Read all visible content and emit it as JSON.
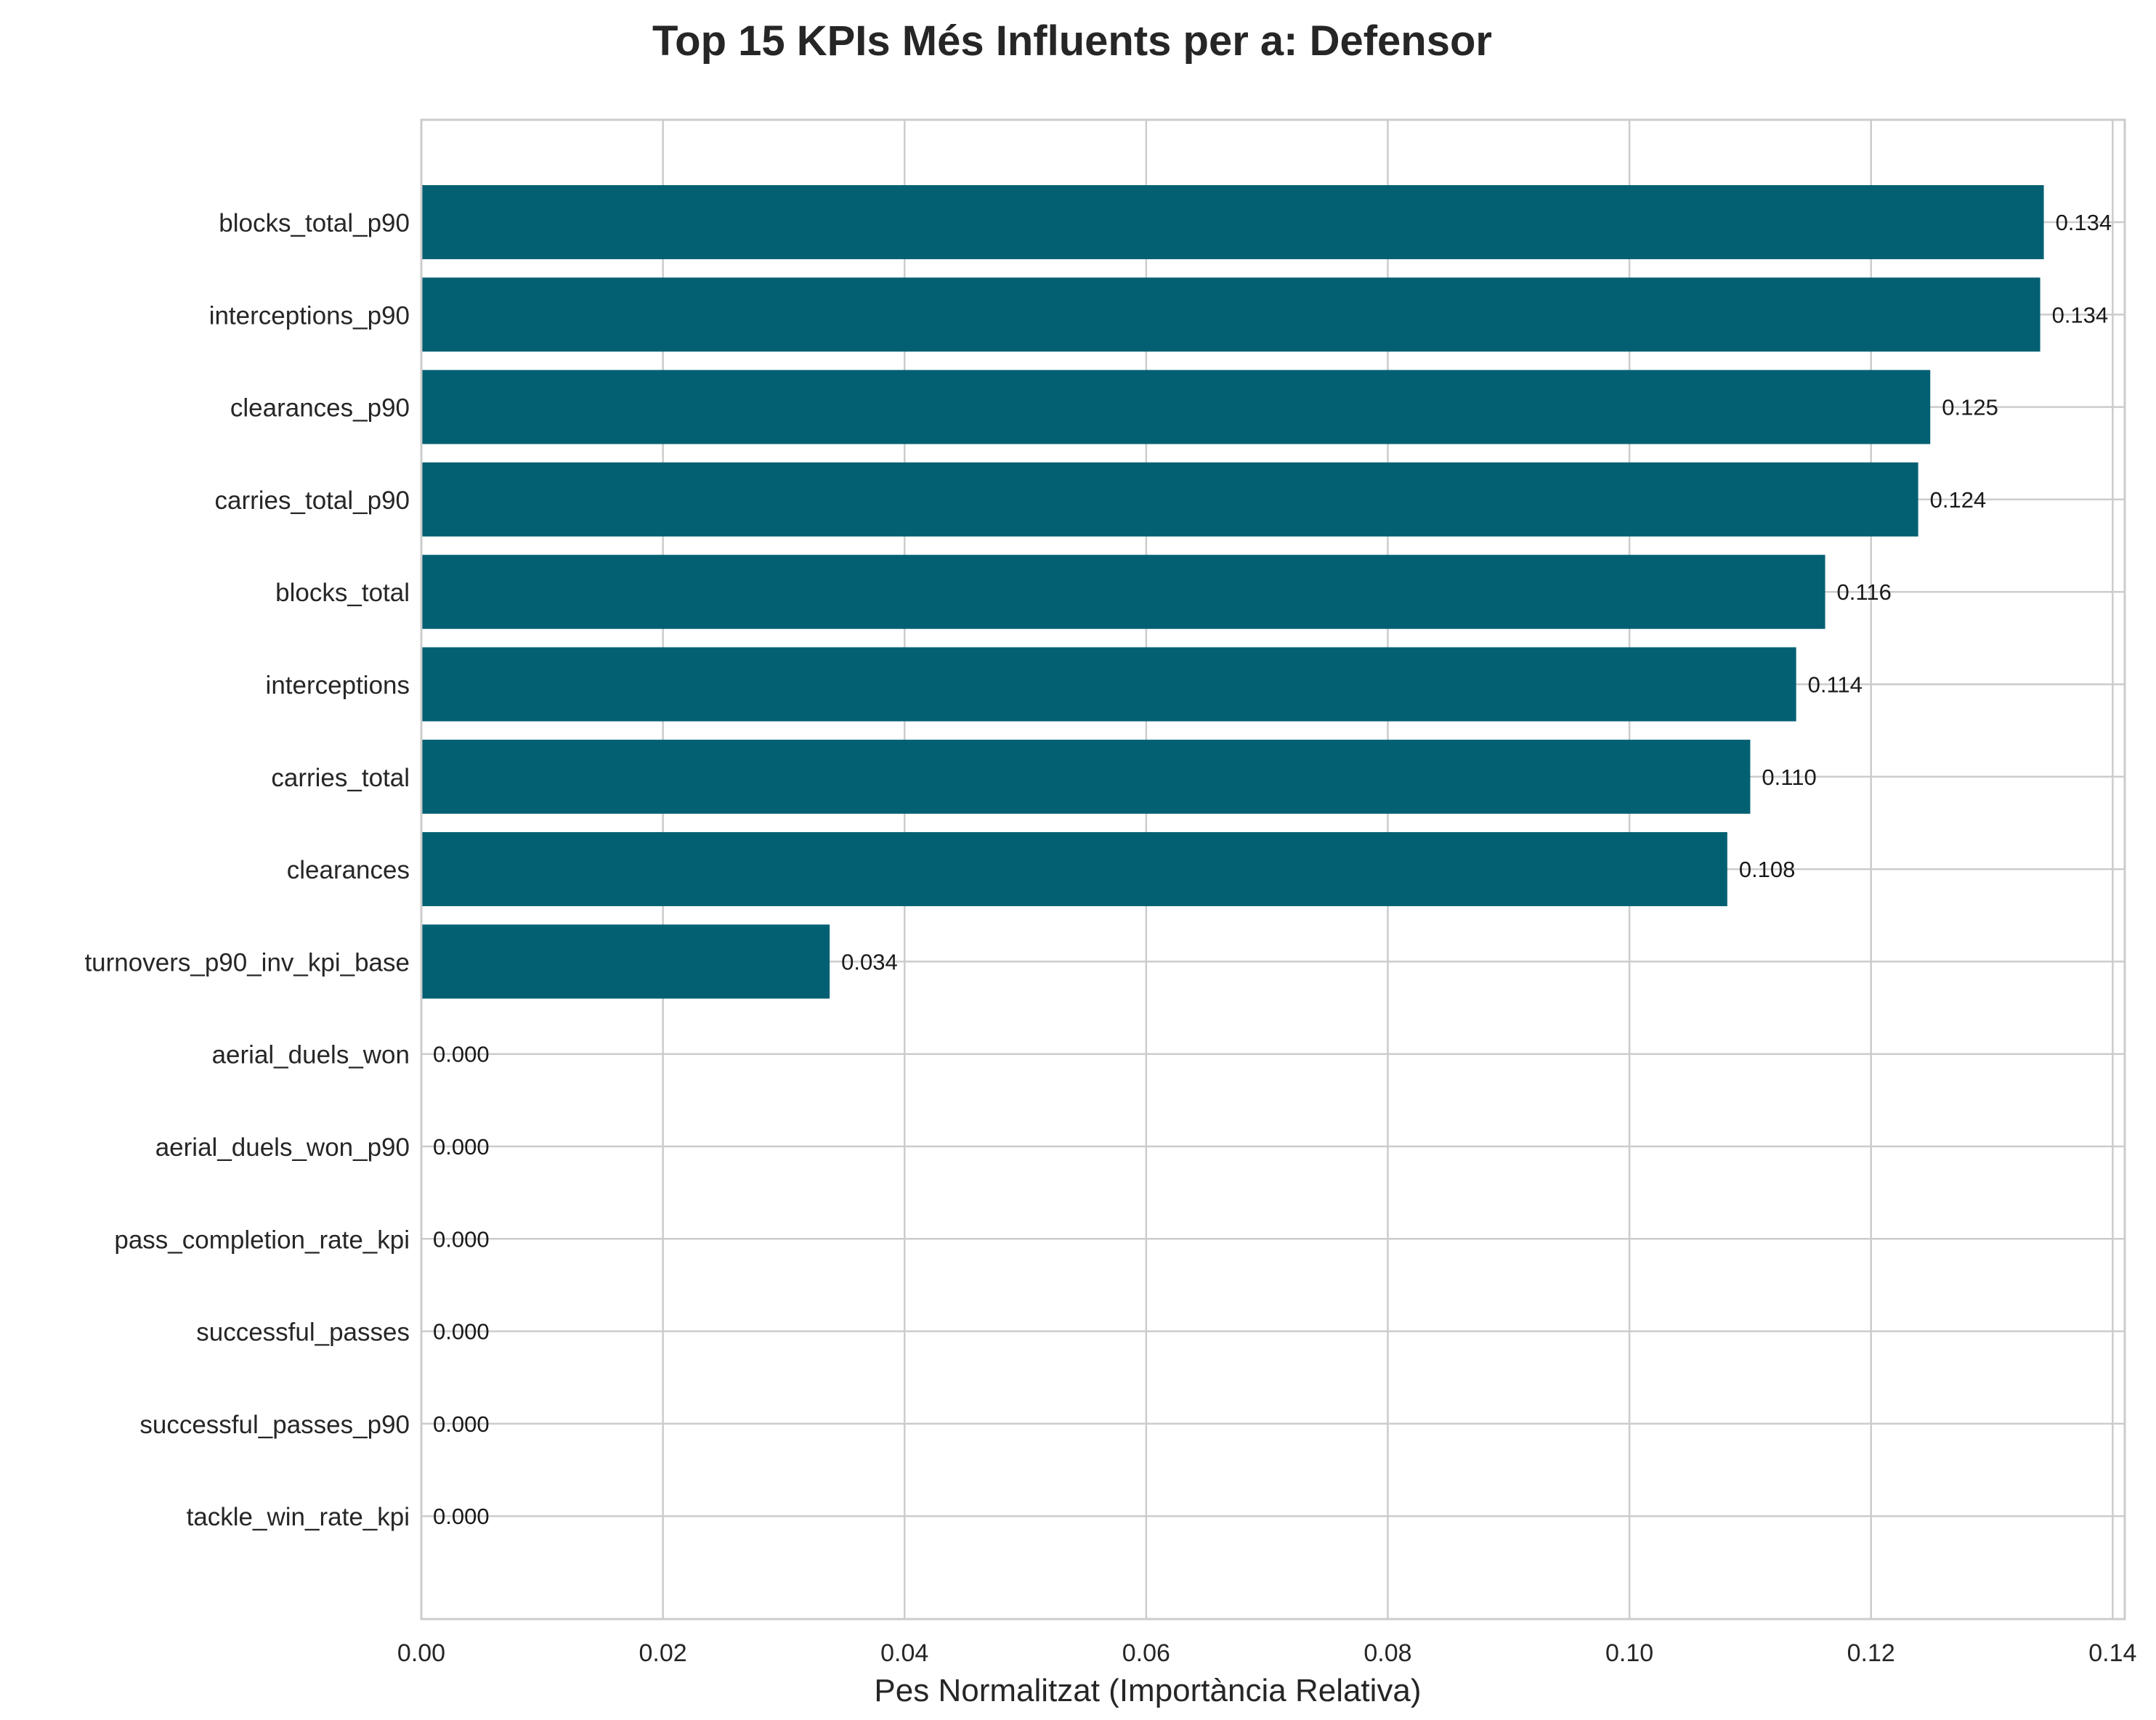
{
  "chart_data": {
    "type": "bar",
    "orientation": "horizontal",
    "title": "Top 15 KPIs Més Influents per a: Defensor",
    "xlabel": "Pes Normalitzat (Importància Relativa)",
    "ylabel": "",
    "xlim": [
      0,
      0.141
    ],
    "xticks": [
      0.0,
      0.02,
      0.04,
      0.06,
      0.08,
      0.1,
      0.12,
      0.14
    ],
    "xtick_labels": [
      "0.00",
      "0.02",
      "0.04",
      "0.06",
      "0.08",
      "0.10",
      "0.12",
      "0.14"
    ],
    "grid": true,
    "bar_color": "#036073",
    "categories": [
      "blocks_total_p90",
      "interceptions_p90",
      "clearances_p90",
      "carries_total_p90",
      "blocks_total",
      "interceptions",
      "carries_total",
      "clearances",
      "turnovers_p90_inv_kpi_base",
      "aerial_duels_won",
      "aerial_duels_won_p90",
      "pass_completion_rate_kpi",
      "successful_passes",
      "successful_passes_p90",
      "tackle_win_rate_kpi"
    ],
    "values": [
      0.1343,
      0.134,
      0.1249,
      0.1239,
      0.1162,
      0.1138,
      0.11,
      0.1081,
      0.0338,
      0,
      0,
      0,
      0,
      0,
      0
    ],
    "value_labels": [
      "0.134",
      "0.134",
      "0.125",
      "0.124",
      "0.116",
      "0.114",
      "0.110",
      "0.108",
      "0.034",
      "0.000",
      "0.000",
      "0.000",
      "0.000",
      "0.000",
      "0.000"
    ]
  }
}
